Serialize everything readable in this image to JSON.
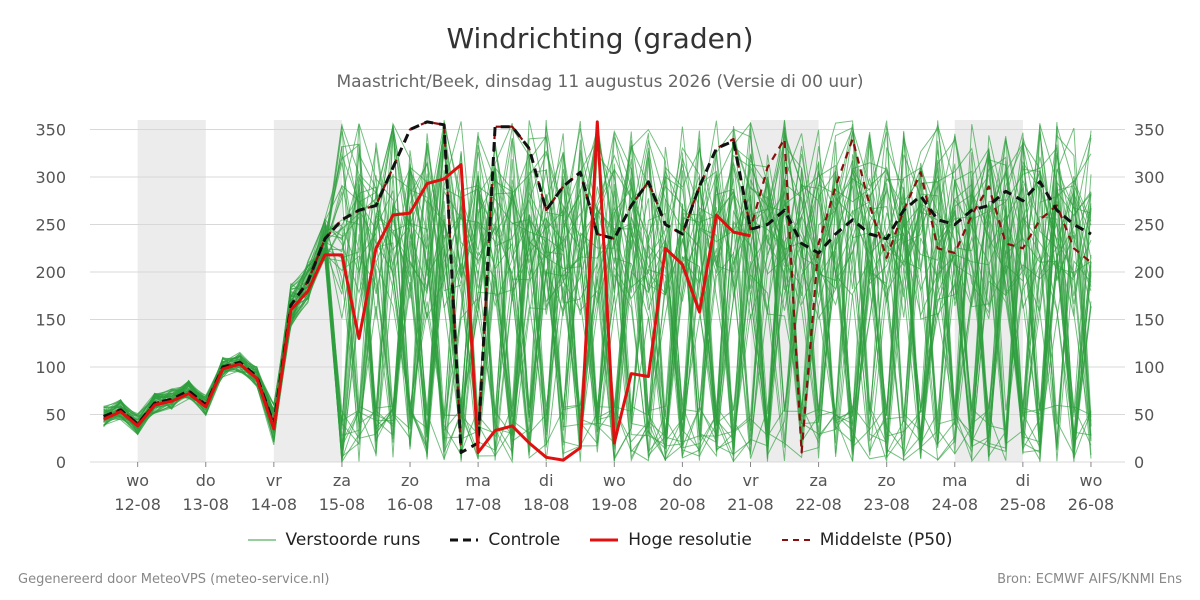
{
  "title": "Windrichting (graden)",
  "subtitle": "Maastricht/Beek, dinsdag 11 augustus 2026 (Versie di 00 uur)",
  "footer_left": "Gegenereerd door MeteoVPS (meteo-service.nl)",
  "footer_right": "Bron: ECMWF AIFS/KNMI Ens",
  "colors": {
    "ensemble": "#2e9e3e",
    "control": "#111111",
    "high_res": "#e01010",
    "median": "#8b0e0e",
    "shade": "#ececec",
    "grid": "#d8d8d8"
  },
  "legend": [
    {
      "key": "ensemble",
      "label": "Verstoorde runs"
    },
    {
      "key": "control",
      "label": "Controle"
    },
    {
      "key": "high_res",
      "label": "Hoge resolutie"
    },
    {
      "key": "median",
      "label": "Middelste (P50)"
    }
  ],
  "chart_data": {
    "type": "line",
    "title": "Windrichting (graden)",
    "xlabel": "",
    "ylabel": "",
    "ylim": [
      0,
      360
    ],
    "yticks": [
      0,
      50,
      100,
      150,
      200,
      250,
      300,
      350
    ],
    "x_unit": "dagen",
    "xlim": [
      0.3,
      15.5
    ],
    "xticks": [
      {
        "x": 1,
        "day": "wo",
        "date": "12-08"
      },
      {
        "x": 2,
        "day": "do",
        "date": "13-08"
      },
      {
        "x": 3,
        "day": "vr",
        "date": "14-08"
      },
      {
        "x": 4,
        "day": "za",
        "date": "15-08"
      },
      {
        "x": 5,
        "day": "zo",
        "date": "16-08"
      },
      {
        "x": 6,
        "day": "ma",
        "date": "17-08"
      },
      {
        "x": 7,
        "day": "di",
        "date": "18-08"
      },
      {
        "x": 8,
        "day": "wo",
        "date": "19-08"
      },
      {
        "x": 9,
        "day": "do",
        "date": "20-08"
      },
      {
        "x": 10,
        "day": "vr",
        "date": "21-08"
      },
      {
        "x": 11,
        "day": "za",
        "date": "22-08"
      },
      {
        "x": 12,
        "day": "zo",
        "date": "23-08"
      },
      {
        "x": 13,
        "day": "ma",
        "date": "24-08"
      },
      {
        "x": 14,
        "day": "di",
        "date": "25-08"
      },
      {
        "x": 15,
        "day": "wo",
        "date": "26-08"
      }
    ],
    "shaded_ranges": [
      [
        1,
        2
      ],
      [
        3.0,
        4.0
      ],
      [
        10.0,
        11.0
      ],
      [
        13.0,
        14.0
      ]
    ],
    "grid": true,
    "legend_position": "bottom",
    "series": [
      {
        "key": "median",
        "name": "Middelste (P50)",
        "style": "dashed",
        "x": [
          0.5,
          0.75,
          1.0,
          1.25,
          1.5,
          1.75,
          2.0,
          2.25,
          2.5,
          2.75,
          3.0,
          3.25,
          3.5,
          3.75,
          4.0,
          4.25,
          4.5,
          4.75,
          5.0,
          5.25,
          5.5,
          5.75,
          6.0,
          6.25,
          6.5,
          6.75,
          7.0,
          7.25,
          7.5,
          7.75,
          8.0,
          8.25,
          8.5,
          8.75,
          9.0,
          9.25,
          9.5,
          9.75,
          10.0,
          10.25,
          10.5,
          10.75,
          11.0,
          11.25,
          11.5,
          11.75,
          12.0,
          12.25,
          12.5,
          12.75,
          13.0,
          13.25,
          13.5,
          13.75,
          14.0,
          14.25,
          14.5,
          14.75,
          15.0
        ],
        "values": [
          48,
          55,
          40,
          62,
          66,
          75,
          60,
          100,
          105,
          90,
          40,
          165,
          190,
          235,
          255,
          265,
          270,
          310,
          350,
          358,
          355,
          10,
          20,
          353,
          353,
          330,
          265,
          290,
          305,
          240,
          235,
          270,
          295,
          250,
          240,
          290,
          330,
          340,
          245,
          310,
          340,
          10,
          230,
          290,
          340,
          270,
          215,
          265,
          305,
          225,
          220,
          260,
          290,
          230,
          225,
          255,
          270,
          225,
          210
        ],
        "x_raw_note": ""
      },
      {
        "key": "control",
        "name": "Controle",
        "style": "dashed",
        "x": [
          0.5,
          0.75,
          1.0,
          1.25,
          1.5,
          1.75,
          2.0,
          2.25,
          2.5,
          2.75,
          3.0,
          3.25,
          3.5,
          3.75,
          4.0,
          4.25,
          4.5,
          4.75,
          5.0,
          5.25,
          5.5,
          5.75,
          6.0,
          6.25,
          6.5,
          6.75,
          7.0,
          7.25,
          7.5,
          7.75,
          8.0,
          8.25,
          8.5,
          8.75,
          9.0,
          9.25,
          9.5,
          9.75,
          10.0,
          10.25,
          10.5,
          10.75,
          11.0,
          11.25,
          11.5,
          11.75,
          12.0,
          12.25,
          12.5,
          12.75,
          13.0,
          13.25,
          13.5,
          13.75,
          14.0,
          14.25,
          14.5,
          14.75,
          15.0
        ],
        "values": [
          48,
          55,
          40,
          62,
          66,
          75,
          60,
          100,
          105,
          90,
          40,
          165,
          190,
          235,
          255,
          265,
          270,
          310,
          350,
          358,
          355,
          10,
          20,
          353,
          353,
          330,
          265,
          290,
          305,
          240,
          235,
          270,
          295,
          250,
          240,
          290,
          330,
          338,
          245,
          250,
          265,
          230,
          220,
          240,
          255,
          240,
          235,
          265,
          280,
          255,
          250,
          265,
          270,
          285,
          275,
          295,
          265,
          250,
          240
        ]
      },
      {
        "key": "high_res",
        "name": "Hoge resolutie",
        "style": "solid",
        "x": [
          0.5,
          0.75,
          1.0,
          1.25,
          1.5,
          1.75,
          2.0,
          2.25,
          2.5,
          2.75,
          3.0,
          3.25,
          3.5,
          3.75,
          4.0,
          4.25,
          4.5,
          4.75,
          5.0,
          5.25,
          5.5,
          5.75,
          6.0,
          6.25,
          6.5,
          6.75,
          7.0,
          7.25,
          7.5,
          7.75,
          8.0,
          8.25,
          8.5,
          8.75,
          9.0,
          9.25,
          9.5,
          9.75,
          10.0
        ],
        "values": [
          45,
          53,
          38,
          60,
          64,
          72,
          58,
          98,
          103,
          88,
          35,
          160,
          180,
          218,
          218,
          130,
          225,
          260,
          262,
          293,
          298,
          313,
          10,
          33,
          38,
          20,
          5,
          2,
          15,
          358,
          20,
          93,
          90,
          225,
          208,
          158,
          260,
          242,
          238
        ]
      }
    ],
    "ensemble_note": "Verstoorde runs"
  }
}
